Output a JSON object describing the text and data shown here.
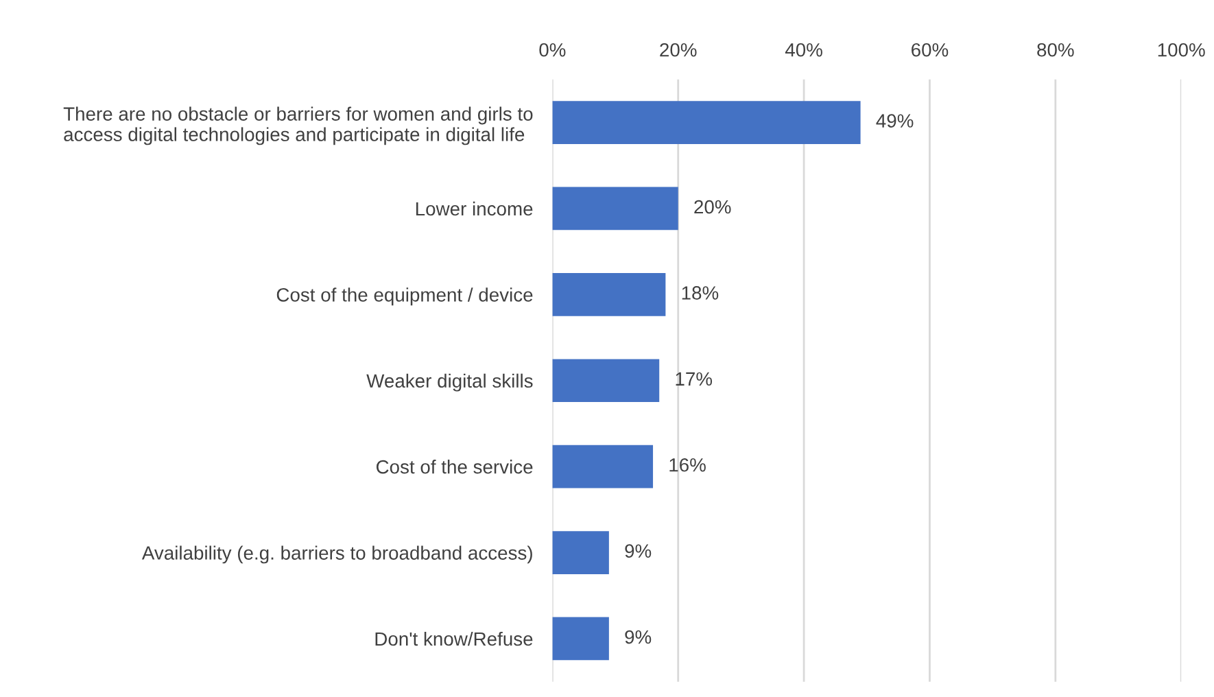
{
  "chart_data": {
    "type": "bar",
    "orientation": "horizontal",
    "categories": [
      "There are no obstacle or barriers for women and girls to\naccess digital technologies and participate in digital life",
      "Lower income",
      "Cost of the equipment / device",
      "Weaker digital skills",
      "Cost of the service",
      "Availability (e.g. barriers to broadband access)",
      "Don't know/Refuse"
    ],
    "values": [
      49,
      20,
      18,
      17,
      16,
      9,
      9
    ],
    "value_labels": [
      "49%",
      "20%",
      "18%",
      "17%",
      "16%",
      "9%",
      "9%"
    ],
    "color": "#4472c4",
    "xlim": [
      0,
      100
    ],
    "xticks": [
      {
        "value": 0,
        "label": "0%"
      },
      {
        "value": 20,
        "label": "20%"
      },
      {
        "value": 40,
        "label": "40%"
      },
      {
        "value": 60,
        "label": "60%"
      },
      {
        "value": 80,
        "label": "80%"
      },
      {
        "value": 100,
        "label": "100%"
      }
    ],
    "grid": "x"
  }
}
